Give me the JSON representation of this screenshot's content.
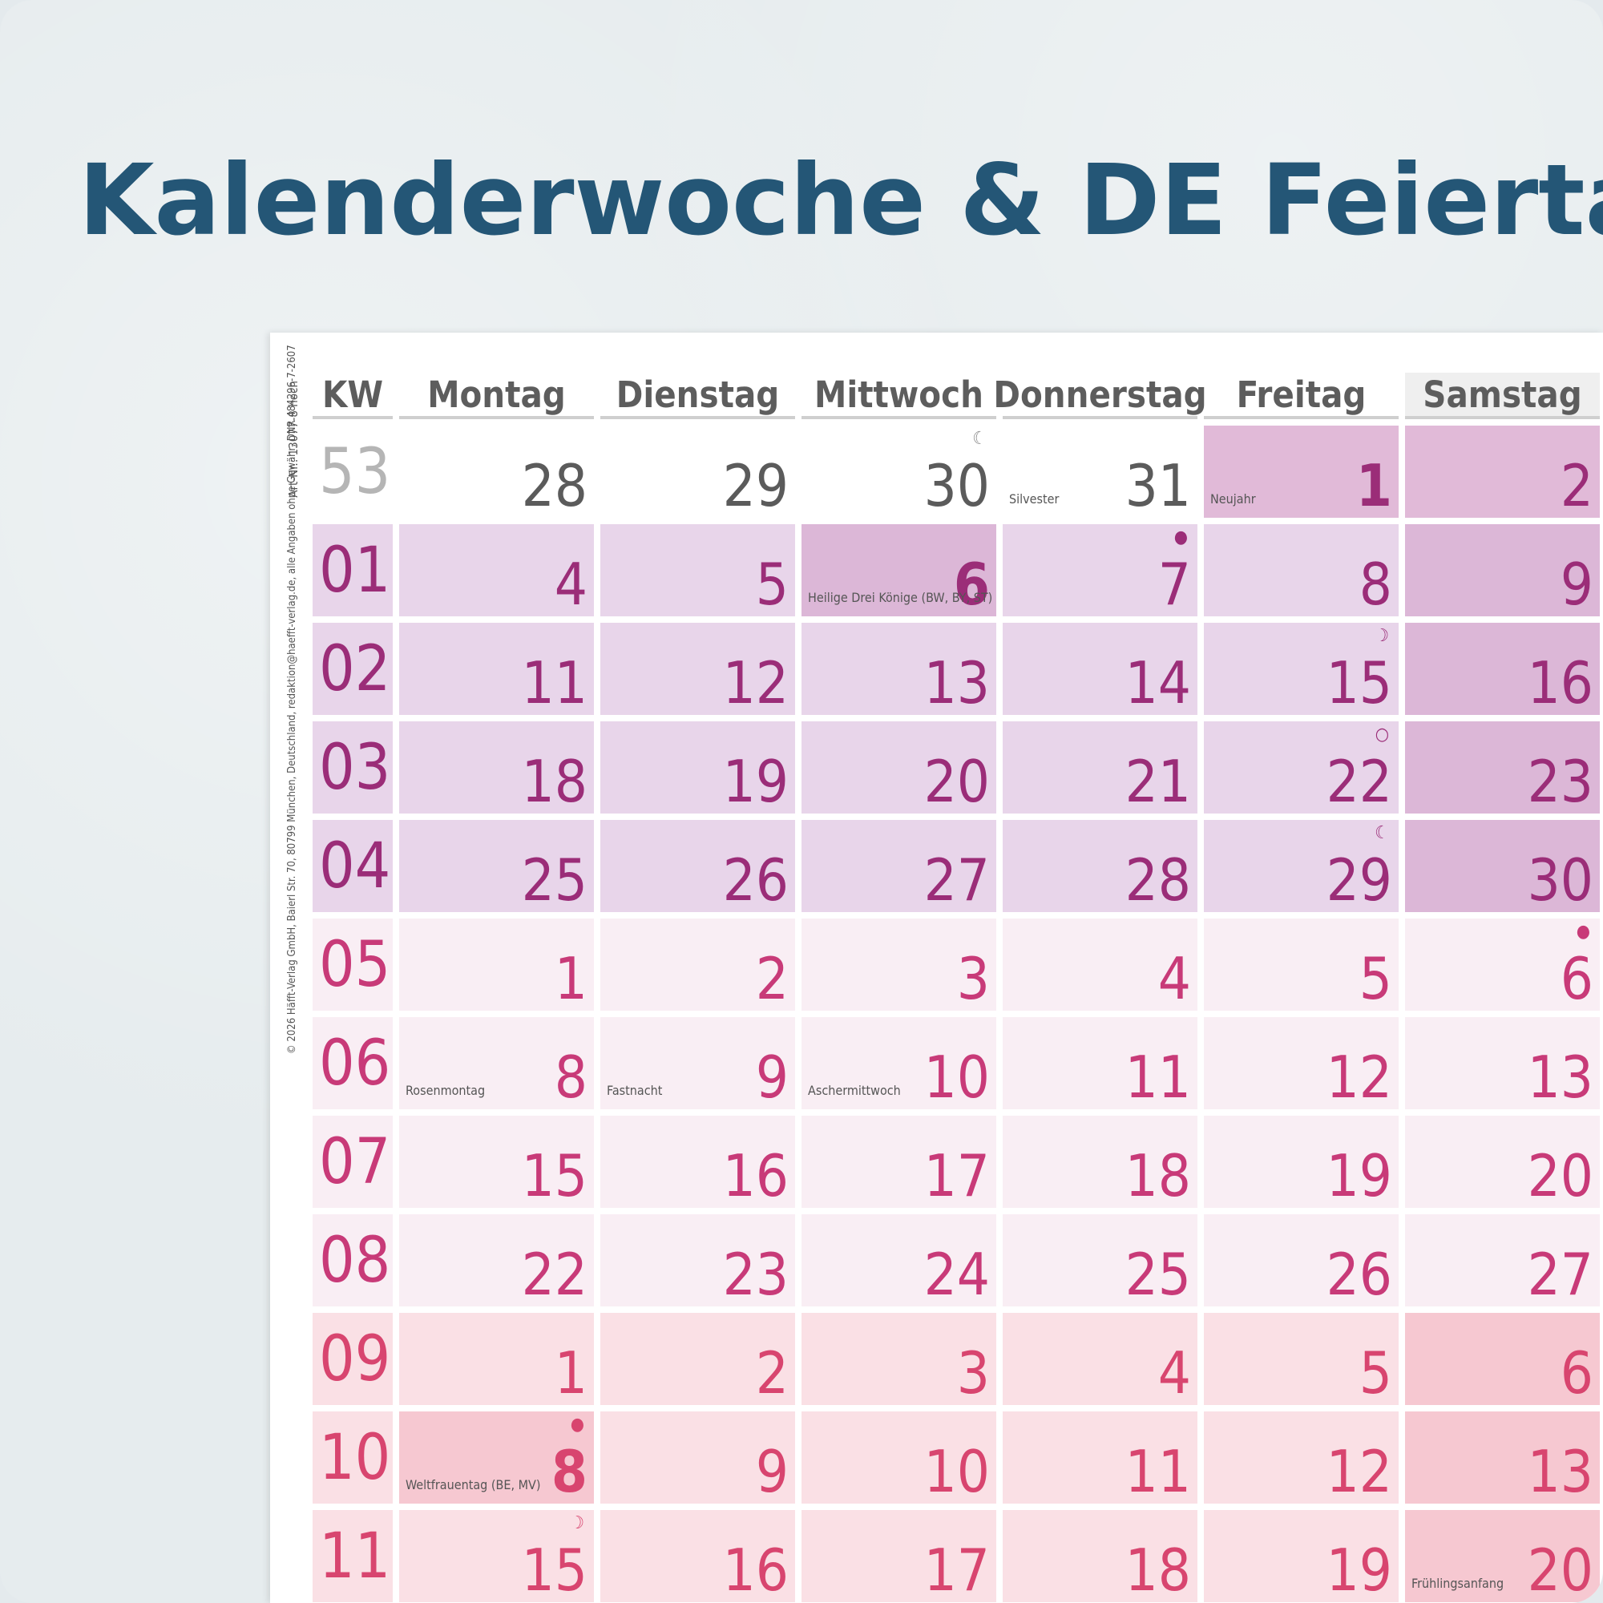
{
  "headline": "Kalenderwoche & DE Feiertage",
  "side_note": {
    "imprint": "© 2026 Häfft-Verlag GmbH, Baierl Str. 70, 80799 München, Deutschland, redaktion@haefft-verlag.de, alle Angaben ohne Gewähr, DNR 484296-7-2607",
    "article": "Art-Nr.: 13077-8 hoch"
  },
  "colors": {
    "kw_plum": "#9b2d78",
    "kw_magenta": "#c83a78",
    "kw_rose": "#d8456f",
    "headline": "#245676"
  },
  "header": {
    "kw": "KW",
    "days": [
      "Montag",
      "Dienstag",
      "Mittwoch",
      "Donnerstag",
      "Freitag",
      "Samstag"
    ]
  },
  "weeks": [
    {
      "kw": "53",
      "kw_color": "#b5b5b5",
      "kw_bold": false,
      "days": [
        {
          "n": "28",
          "bg": "#ffffff",
          "c": "#5b5b5b"
        },
        {
          "n": "29",
          "bg": "#ffffff",
          "c": "#5b5b5b"
        },
        {
          "n": "30",
          "bg": "#ffffff",
          "c": "#5b5b5b",
          "moon": "☾",
          "mc": "#8a8a8a"
        },
        {
          "n": "31",
          "bg": "#ffffff",
          "c": "#5b5b5b",
          "hol": "Silvester"
        },
        {
          "n": "1",
          "bg": "#e1bad8",
          "c": "#9b2d78",
          "hol": "Neujahr",
          "bold": true
        },
        {
          "n": "2",
          "bg": "#e1bad8",
          "c": "#9b2d78"
        }
      ]
    },
    {
      "kw": "01",
      "kw_color": "#9b2d78",
      "kw_bold": false,
      "kw_bg": "#e8d5ea",
      "days": [
        {
          "n": "4",
          "bg": "#e8d5ea",
          "c": "#9b2d78"
        },
        {
          "n": "5",
          "bg": "#e8d5ea",
          "c": "#9b2d78"
        },
        {
          "n": "6",
          "bg": "#dcb7d7",
          "c": "#9b2d78",
          "hol": "Heilige Drei Könige (BW, BY, ST)",
          "bold": true
        },
        {
          "n": "7",
          "bg": "#e8d5ea",
          "c": "#9b2d78",
          "moon": "●"
        },
        {
          "n": "8",
          "bg": "#e8d5ea",
          "c": "#9b2d78"
        },
        {
          "n": "9",
          "bg": "#dcb7d7",
          "c": "#9b2d78"
        }
      ]
    },
    {
      "kw": "02",
      "kw_color": "#9b2d78",
      "kw_bold": false,
      "kw_bg": "#e8d5ea",
      "days": [
        {
          "n": "11",
          "bg": "#e8d5ea",
          "c": "#9b2d78"
        },
        {
          "n": "12",
          "bg": "#e8d5ea",
          "c": "#9b2d78"
        },
        {
          "n": "13",
          "bg": "#e8d5ea",
          "c": "#9b2d78"
        },
        {
          "n": "14",
          "bg": "#e8d5ea",
          "c": "#9b2d78"
        },
        {
          "n": "15",
          "bg": "#e8d5ea",
          "c": "#9b2d78",
          "moon": "☽"
        },
        {
          "n": "16",
          "bg": "#dcb7d7",
          "c": "#9b2d78"
        }
      ]
    },
    {
      "kw": "03",
      "kw_color": "#9b2d78",
      "kw_bold": false,
      "kw_bg": "#e8d5ea",
      "days": [
        {
          "n": "18",
          "bg": "#e8d5ea",
          "c": "#9b2d78"
        },
        {
          "n": "19",
          "bg": "#e8d5ea",
          "c": "#9b2d78"
        },
        {
          "n": "20",
          "bg": "#e8d5ea",
          "c": "#9b2d78"
        },
        {
          "n": "21",
          "bg": "#e8d5ea",
          "c": "#9b2d78"
        },
        {
          "n": "22",
          "bg": "#e8d5ea",
          "c": "#9b2d78",
          "moon": "○"
        },
        {
          "n": "23",
          "bg": "#dcb7d7",
          "c": "#9b2d78"
        }
      ]
    },
    {
      "kw": "04",
      "kw_color": "#9b2d78",
      "kw_bold": false,
      "kw_bg": "#e8d5ea",
      "days": [
        {
          "n": "25",
          "bg": "#e8d5ea",
          "c": "#9b2d78"
        },
        {
          "n": "26",
          "bg": "#e8d5ea",
          "c": "#9b2d78"
        },
        {
          "n": "27",
          "bg": "#e8d5ea",
          "c": "#9b2d78"
        },
        {
          "n": "28",
          "bg": "#e8d5ea",
          "c": "#9b2d78"
        },
        {
          "n": "29",
          "bg": "#e8d5ea",
          "c": "#9b2d78",
          "moon": "☾"
        },
        {
          "n": "30",
          "bg": "#dcb7d7",
          "c": "#9b2d78"
        }
      ]
    },
    {
      "kw": "05",
      "kw_color": "#c83a78",
      "kw_bold": false,
      "kw_bg": "#f9eef4",
      "days": [
        {
          "n": "1",
          "bg": "#f9eef4",
          "c": "#c83a78"
        },
        {
          "n": "2",
          "bg": "#f9eef4",
          "c": "#c83a78"
        },
        {
          "n": "3",
          "bg": "#f9eef4",
          "c": "#c83a78"
        },
        {
          "n": "4",
          "bg": "#f9eef4",
          "c": "#c83a78"
        },
        {
          "n": "5",
          "bg": "#f9eef4",
          "c": "#c83a78"
        },
        {
          "n": "6",
          "bg": "#f9eef4",
          "c": "#c83a78",
          "moon": "●"
        }
      ]
    },
    {
      "kw": "06",
      "kw_color": "#c83a78",
      "kw_bold": false,
      "kw_bg": "#f9eef4",
      "days": [
        {
          "n": "8",
          "bg": "#f9eef4",
          "c": "#c83a78",
          "hol": "Rosenmontag"
        },
        {
          "n": "9",
          "bg": "#f9eef4",
          "c": "#c83a78",
          "hol": "Fastnacht"
        },
        {
          "n": "10",
          "bg": "#f9eef4",
          "c": "#c83a78",
          "hol": "Aschermittwoch"
        },
        {
          "n": "11",
          "bg": "#f9eef4",
          "c": "#c83a78"
        },
        {
          "n": "12",
          "bg": "#f9eef4",
          "c": "#c83a78"
        },
        {
          "n": "13",
          "bg": "#f9eef4",
          "c": "#c83a78"
        }
      ]
    },
    {
      "kw": "07",
      "kw_color": "#c83a78",
      "kw_bold": false,
      "kw_bg": "#f9eef4",
      "days": [
        {
          "n": "15",
          "bg": "#f9eef4",
          "c": "#c83a78"
        },
        {
          "n": "16",
          "bg": "#f9eef4",
          "c": "#c83a78"
        },
        {
          "n": "17",
          "bg": "#f9eef4",
          "c": "#c83a78"
        },
        {
          "n": "18",
          "bg": "#f9eef4",
          "c": "#c83a78"
        },
        {
          "n": "19",
          "bg": "#f9eef4",
          "c": "#c83a78"
        },
        {
          "n": "20",
          "bg": "#f9eef4",
          "c": "#c83a78"
        }
      ]
    },
    {
      "kw": "08",
      "kw_color": "#c83a78",
      "kw_bold": false,
      "kw_bg": "#f9eef4",
      "days": [
        {
          "n": "22",
          "bg": "#f9eef4",
          "c": "#c83a78"
        },
        {
          "n": "23",
          "bg": "#f9eef4",
          "c": "#c83a78"
        },
        {
          "n": "24",
          "bg": "#f9eef4",
          "c": "#c83a78"
        },
        {
          "n": "25",
          "bg": "#f9eef4",
          "c": "#c83a78"
        },
        {
          "n": "26",
          "bg": "#f9eef4",
          "c": "#c83a78"
        },
        {
          "n": "27",
          "bg": "#f9eef4",
          "c": "#c83a78"
        }
      ]
    },
    {
      "kw": "09",
      "kw_color": "#d8456f",
      "kw_bold": false,
      "kw_bg": "#fae0e5",
      "days": [
        {
          "n": "1",
          "bg": "#fae0e5",
          "c": "#d8456f"
        },
        {
          "n": "2",
          "bg": "#fae0e5",
          "c": "#d8456f"
        },
        {
          "n": "3",
          "bg": "#fae0e5",
          "c": "#d8456f"
        },
        {
          "n": "4",
          "bg": "#fae0e5",
          "c": "#d8456f"
        },
        {
          "n": "5",
          "bg": "#fae0e5",
          "c": "#d8456f"
        },
        {
          "n": "6",
          "bg": "#f6c8d1",
          "c": "#d8456f"
        }
      ]
    },
    {
      "kw": "10",
      "kw_color": "#d8456f",
      "kw_bold": false,
      "kw_bg": "#fae0e5",
      "days": [
        {
          "n": "8",
          "bg": "#f6c8d1",
          "c": "#d8456f",
          "hol": "Weltfrauentag (BE, MV)",
          "bold": true,
          "moon": "●"
        },
        {
          "n": "9",
          "bg": "#fae0e5",
          "c": "#d8456f"
        },
        {
          "n": "10",
          "bg": "#fae0e5",
          "c": "#d8456f"
        },
        {
          "n": "11",
          "bg": "#fae0e5",
          "c": "#d8456f"
        },
        {
          "n": "12",
          "bg": "#fae0e5",
          "c": "#d8456f"
        },
        {
          "n": "13",
          "bg": "#f6c8d1",
          "c": "#d8456f"
        }
      ]
    },
    {
      "kw": "11",
      "kw_color": "#d8456f",
      "kw_bold": false,
      "kw_bg": "#fae0e5",
      "days": [
        {
          "n": "15",
          "bg": "#fae0e5",
          "c": "#d8456f",
          "moon": "☽"
        },
        {
          "n": "16",
          "bg": "#fae0e5",
          "c": "#d8456f"
        },
        {
          "n": "17",
          "bg": "#fae0e5",
          "c": "#d8456f"
        },
        {
          "n": "18",
          "bg": "#fae0e5",
          "c": "#d8456f"
        },
        {
          "n": "19",
          "bg": "#fae0e5",
          "c": "#d8456f"
        },
        {
          "n": "20",
          "bg": "#f6c8d1",
          "c": "#d8456f",
          "hol": "Frühlingsanfang"
        }
      ]
    }
  ]
}
